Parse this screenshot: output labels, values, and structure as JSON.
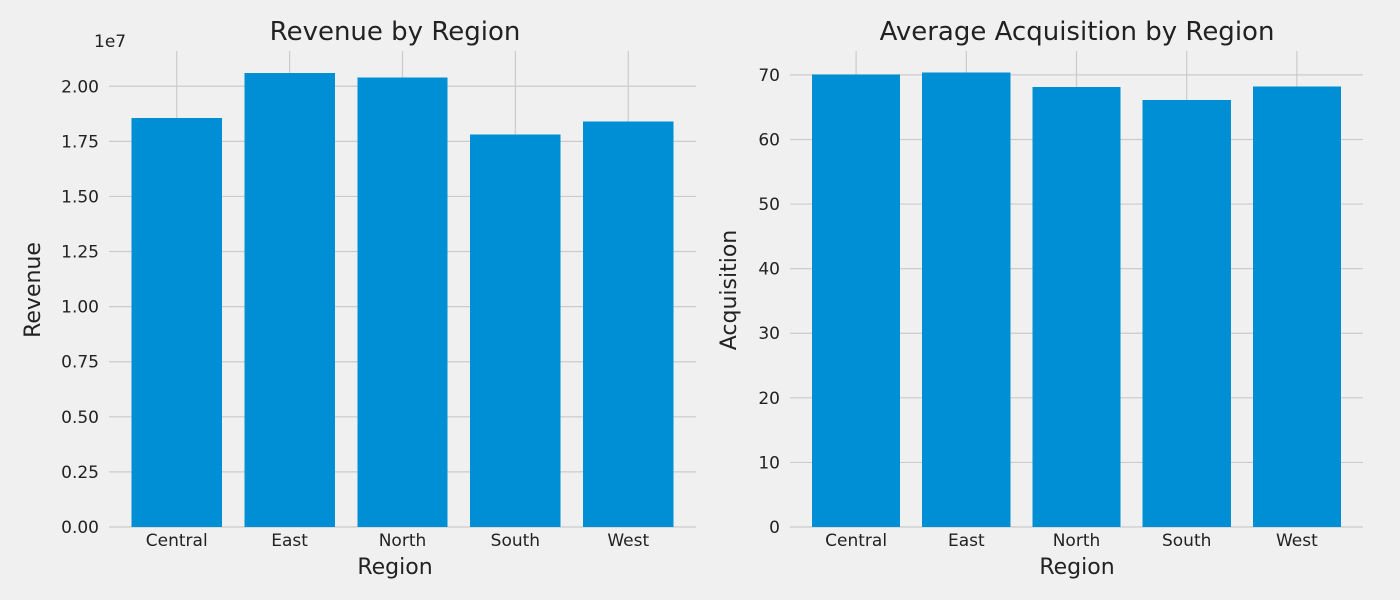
{
  "colors": {
    "background": "#f0f0f0",
    "bar": "#008fd5",
    "grid": "#cbcbcb",
    "text": "#222222"
  },
  "chart_data": [
    {
      "type": "bar",
      "title": "Revenue by Region",
      "xlabel": "Region",
      "ylabel": "Revenue",
      "offset_label": "1e7",
      "categories": [
        "Central",
        "East",
        "North",
        "South",
        "West"
      ],
      "values": [
        18550000,
        20600000,
        20400000,
        17800000,
        18400000
      ],
      "ylim": [
        0,
        21600000
      ],
      "yticks": [
        0,
        2500000,
        5000000,
        7500000,
        10000000,
        12500000,
        15000000,
        17500000,
        20000000
      ],
      "ytick_labels": [
        "0.00",
        "0.25",
        "0.50",
        "0.75",
        "1.00",
        "1.25",
        "1.50",
        "1.75",
        "2.00"
      ],
      "grid": true
    },
    {
      "type": "bar",
      "title": "Average Acquisition by Region",
      "xlabel": "Region",
      "ylabel": "Acquisition",
      "categories": [
        "Central",
        "East",
        "North",
        "South",
        "West"
      ],
      "values": [
        70.1,
        70.4,
        68.1,
        66.1,
        68.2
      ],
      "ylim": [
        0,
        73.7
      ],
      "yticks": [
        0,
        10,
        20,
        30,
        40,
        50,
        60,
        70
      ],
      "ytick_labels": [
        "0",
        "10",
        "20",
        "30",
        "40",
        "50",
        "60",
        "70"
      ],
      "grid": true
    }
  ]
}
